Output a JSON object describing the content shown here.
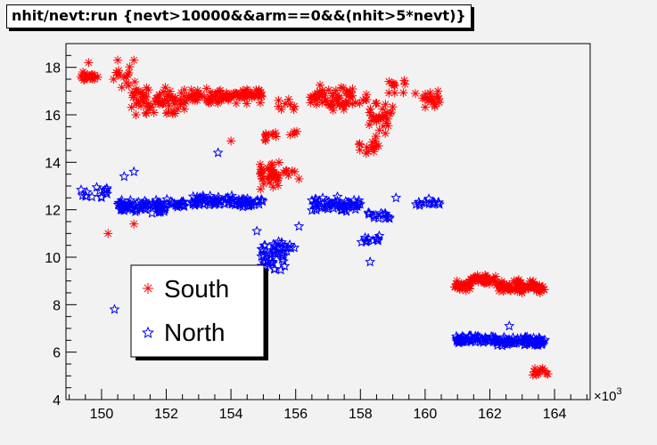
{
  "chart_data": {
    "type": "scatter",
    "title": "nhit/nevt:run {nevt>10000&&arm==0&&(nhit>5*nevt)}",
    "x_exponent_label": "×10",
    "x_exponent_power": "3",
    "xlim": [
      148.9,
      165.1
    ],
    "ylim": [
      4,
      19
    ],
    "x_ticks": [
      150,
      152,
      154,
      156,
      158,
      160,
      162,
      164
    ],
    "y_ticks": [
      4,
      6,
      8,
      10,
      12,
      14,
      16,
      18
    ],
    "legend_position": "lower-left",
    "series": [
      {
        "name": "South",
        "color": "#ff0000",
        "marker": "asterisk",
        "clusters": [
          {
            "x": [
              149.3,
              149.9
            ],
            "y": [
              17.3,
              17.9
            ],
            "n": 20
          },
          {
            "x": [
              150.3,
              151.1
            ],
            "y": [
              16.8,
              18.2
            ],
            "n": 14
          },
          {
            "x": [
              150.9,
              152.6
            ],
            "y": [
              15.8,
              17.4
            ],
            "n": 75
          },
          {
            "x": [
              152.6,
              153.9
            ],
            "y": [
              16.3,
              17.2
            ],
            "n": 50
          },
          {
            "x": [
              153.9,
              155.0
            ],
            "y": [
              16.4,
              17.3
            ],
            "n": 45
          },
          {
            "x": [
              155.0,
              155.4
            ],
            "y": [
              14.7,
              15.5
            ],
            "n": 8
          },
          {
            "x": [
              154.9,
              155.5
            ],
            "y": [
              12.6,
              14.3
            ],
            "n": 35
          },
          {
            "x": [
              155.5,
              156.1
            ],
            "y": [
              13.0,
              14.0
            ],
            "n": 6
          },
          {
            "x": [
              155.4,
              156.0
            ],
            "y": [
              16.0,
              16.9
            ],
            "n": 8
          },
          {
            "x": [
              155.8,
              156.2
            ],
            "y": [
              15.1,
              15.4
            ],
            "n": 4
          },
          {
            "x": [
              156.4,
              157.8
            ],
            "y": [
              16.1,
              17.4
            ],
            "n": 60
          },
          {
            "x": [
              157.8,
              158.2
            ],
            "y": [
              16.2,
              17.0
            ],
            "n": 6
          },
          {
            "x": [
              157.9,
              158.6
            ],
            "y": [
              14.0,
              15.4
            ],
            "n": 15
          },
          {
            "x": [
              158.2,
              159.0
            ],
            "y": [
              15.0,
              16.8
            ],
            "n": 30
          },
          {
            "x": [
              158.8,
              159.4
            ],
            "y": [
              16.8,
              17.7
            ],
            "n": 10
          },
          {
            "x": [
              159.9,
              160.5
            ],
            "y": [
              16.2,
              17.1
            ],
            "n": 18
          },
          {
            "x": [
              160.9,
              161.4
            ],
            "y": [
              8.5,
              9.1
            ],
            "n": 25
          },
          {
            "x": [
              161.4,
              162.2
            ],
            "y": [
              8.8,
              9.3
            ],
            "n": 45
          },
          {
            "x": [
              162.2,
              163.7
            ],
            "y": [
              8.4,
              9.1
            ],
            "n": 80
          },
          {
            "x": [
              163.3,
              163.8
            ],
            "y": [
              4.8,
              5.6
            ],
            "n": 12
          }
        ],
        "points": [
          {
            "x": 150.2,
            "y": 11.0
          },
          {
            "x": 151.0,
            "y": 11.4
          },
          {
            "x": 149.6,
            "y": 18.2
          },
          {
            "x": 150.5,
            "y": 18.3
          },
          {
            "x": 151.0,
            "y": 18.3
          },
          {
            "x": 154.0,
            "y": 14.9
          },
          {
            "x": 155.3,
            "y": 15.2
          },
          {
            "x": 156.1,
            "y": 13.3
          },
          {
            "x": 159.7,
            "y": 16.9
          }
        ]
      },
      {
        "name": "North",
        "color": "#0000ff",
        "marker": "star",
        "clusters": [
          {
            "x": [
              149.3,
              150.2
            ],
            "y": [
              12.3,
              13.1
            ],
            "n": 15
          },
          {
            "x": [
              150.5,
              152.0
            ],
            "y": [
              11.7,
              12.5
            ],
            "n": 75
          },
          {
            "x": [
              152.0,
              152.6
            ],
            "y": [
              11.9,
              12.6
            ],
            "n": 20
          },
          {
            "x": [
              152.8,
              154.1
            ],
            "y": [
              12.0,
              12.7
            ],
            "n": 55
          },
          {
            "x": [
              154.1,
              155.0
            ],
            "y": [
              12.0,
              12.6
            ],
            "n": 35
          },
          {
            "x": [
              154.9,
              155.7
            ],
            "y": [
              9.0,
              11.0
            ],
            "n": 35
          },
          {
            "x": [
              155.3,
              156.0
            ],
            "y": [
              9.8,
              10.8
            ],
            "n": 15
          },
          {
            "x": [
              156.5,
              158.0
            ],
            "y": [
              11.8,
              12.6
            ],
            "n": 60
          },
          {
            "x": [
              158.0,
              158.6
            ],
            "y": [
              10.4,
              11.1
            ],
            "n": 12
          },
          {
            "x": [
              158.2,
              158.9
            ],
            "y": [
              11.4,
              12.1
            ],
            "n": 15
          },
          {
            "x": [
              159.7,
              160.5
            ],
            "y": [
              12.0,
              12.5
            ],
            "n": 15
          },
          {
            "x": [
              160.9,
              162.2
            ],
            "y": [
              6.3,
              6.8
            ],
            "n": 60
          },
          {
            "x": [
              162.2,
              163.7
            ],
            "y": [
              6.2,
              6.7
            ],
            "n": 80
          }
        ],
        "points": [
          {
            "x": 150.4,
            "y": 7.8
          },
          {
            "x": 151.0,
            "y": 13.6
          },
          {
            "x": 153.6,
            "y": 14.4
          },
          {
            "x": 154.8,
            "y": 11.1
          },
          {
            "x": 159.1,
            "y": 12.5
          },
          {
            "x": 156.1,
            "y": 11.3
          },
          {
            "x": 158.3,
            "y": 9.8
          },
          {
            "x": 150.7,
            "y": 13.4
          },
          {
            "x": 162.6,
            "y": 7.1
          }
        ]
      }
    ]
  }
}
